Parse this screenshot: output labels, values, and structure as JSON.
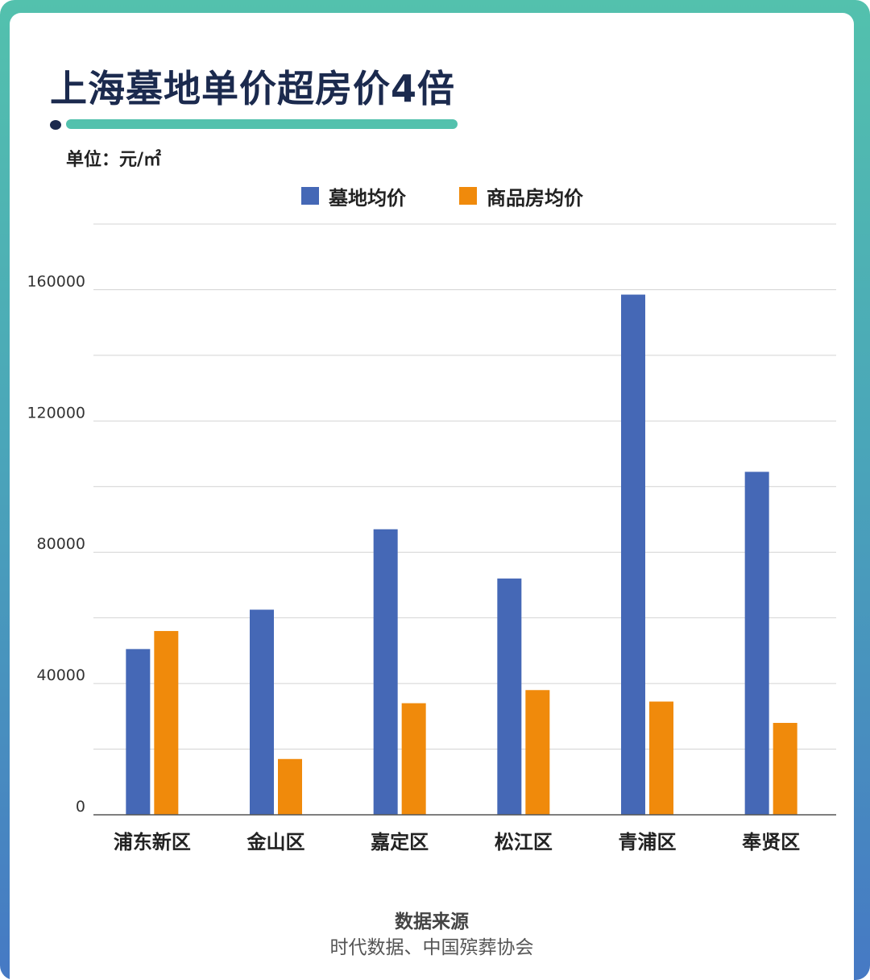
{
  "title": "上海墓地单价超房价4倍",
  "unit_label": "单位：元/㎡",
  "source": {
    "title": "数据来源",
    "text": "时代数据、中国殡葬协会"
  },
  "colors": {
    "frame_top": "#53c1ad",
    "frame_bottom": "#4679c4",
    "title": "#1b2a4e",
    "accent": "#53c1ad"
  },
  "chart_data": {
    "type": "bar",
    "categories": [
      "浦东新区",
      "金山区",
      "嘉定区",
      "松江区",
      "青浦区",
      "奉贤区"
    ],
    "series": [
      {
        "name": "墓地均价",
        "color": "#4568b6",
        "values": [
          50500,
          62500,
          87000,
          72000,
          158500,
          104500
        ]
      },
      {
        "name": "商品房均价",
        "color": "#f08a0b",
        "values": [
          56000,
          17000,
          34000,
          38000,
          34500,
          28000
        ]
      }
    ],
    "yticks": [
      0,
      40000,
      80000,
      120000,
      160000
    ],
    "ylim": [
      0,
      180000
    ],
    "grid": true,
    "legend": "top-center"
  }
}
